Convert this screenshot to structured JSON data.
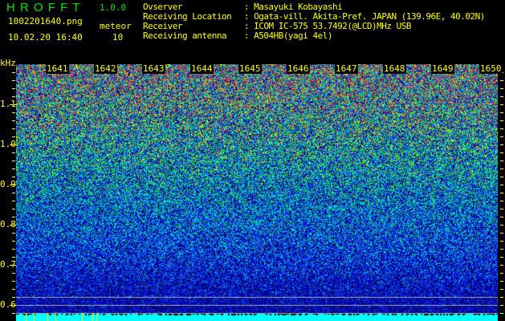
{
  "app": {
    "name": "H R O F F T",
    "version": "1.0.0"
  },
  "file": {
    "name": "1002201640.png",
    "datetime": "10.02.20 16:40"
  },
  "meteor": {
    "label": "meteor",
    "count": "10"
  },
  "info": [
    {
      "label": "Ovserver",
      "value": "Masayuki Kobayashi"
    },
    {
      "label": "Receiving Location",
      "value": "Ogata-vill. Akita-Pref. JAPAN (139.96E, 40.02N)"
    },
    {
      "label": "Receiver",
      "value": "ICOM IC-575 53.7492(@LCD)MHz USB"
    },
    {
      "label": "Receiving antenna",
      "value": "A504HB(yagi 4el)"
    }
  ],
  "axis": {
    "unit": "kHz",
    "freq_ticks": [
      "1.1",
      "1.0",
      "0.9",
      "0.8",
      "0.7",
      "0.6"
    ],
    "time_labels": [
      "1641",
      "1642",
      "1643",
      "1644",
      "1645",
      "1646",
      "1647",
      "1648",
      "1649",
      "1650"
    ]
  },
  "colors": {
    "text": "#ffff00",
    "title": "#00e000",
    "baseline": "#00ffff",
    "marker": "#ffff00"
  }
}
